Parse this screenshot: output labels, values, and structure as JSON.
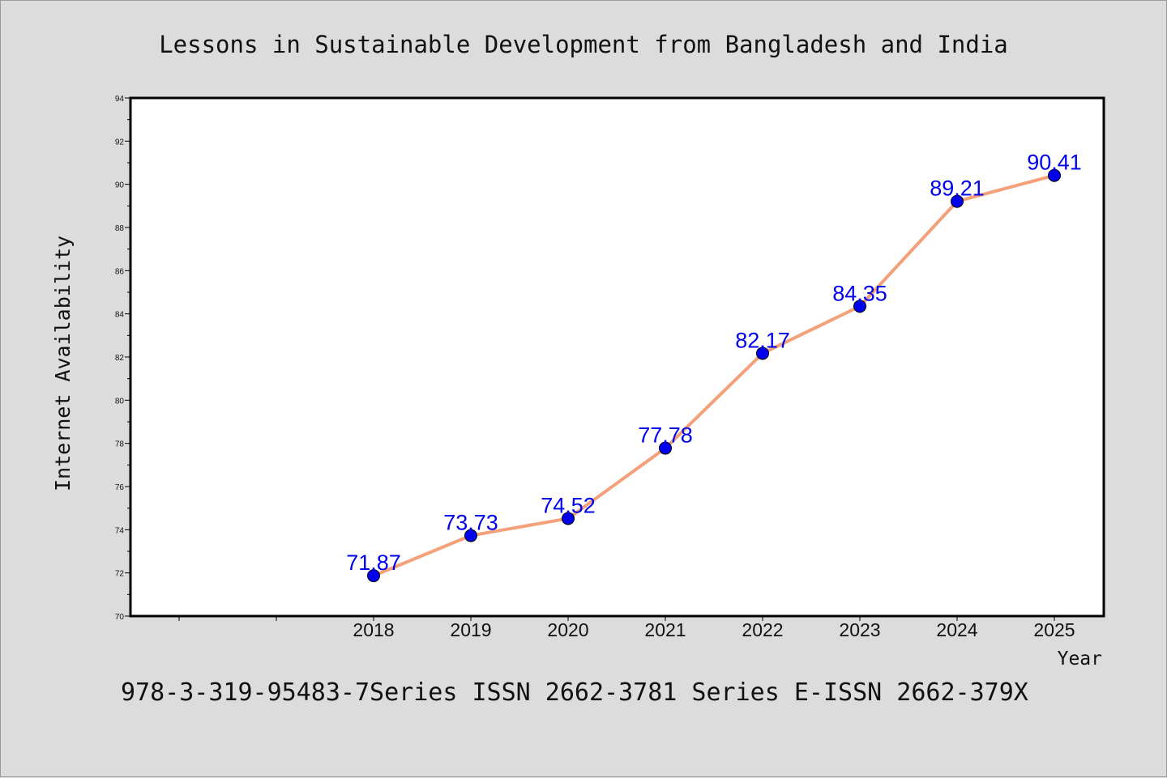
{
  "chart_data": {
    "type": "line",
    "title": "Lessons in Sustainable Development from Bangladesh and India",
    "xlabel": "Year",
    "ylabel": "Internet Availability",
    "footer": "978-3-319-95483-7Series ISSN 2662-3781 Series E-ISSN 2662-379X",
    "x": [
      "2018",
      "2019",
      "2020",
      "2021",
      "2022",
      "2023",
      "2024",
      "2025"
    ],
    "series": [
      {
        "values": [
          71.87,
          73.73,
          74.52,
          77.78,
          82.17,
          84.35,
          89.21,
          90.41
        ]
      }
    ],
    "data_labels": [
      "71.87",
      "73.73",
      "74.52",
      "77.78",
      "82.17",
      "84.35",
      "89.21",
      "90.41"
    ],
    "yticks": [
      "70",
      "72",
      "74",
      "76",
      "78",
      "80",
      "82",
      "84",
      "86",
      "88",
      "90",
      "92",
      "94"
    ],
    "ylim": [
      70,
      94
    ],
    "grid": false,
    "colors": {
      "line": "#f4a07a",
      "marker": "#0000ee",
      "data_label": "#0000ee",
      "background": "#dcdcdc",
      "plot_background": "#ffffff"
    }
  }
}
